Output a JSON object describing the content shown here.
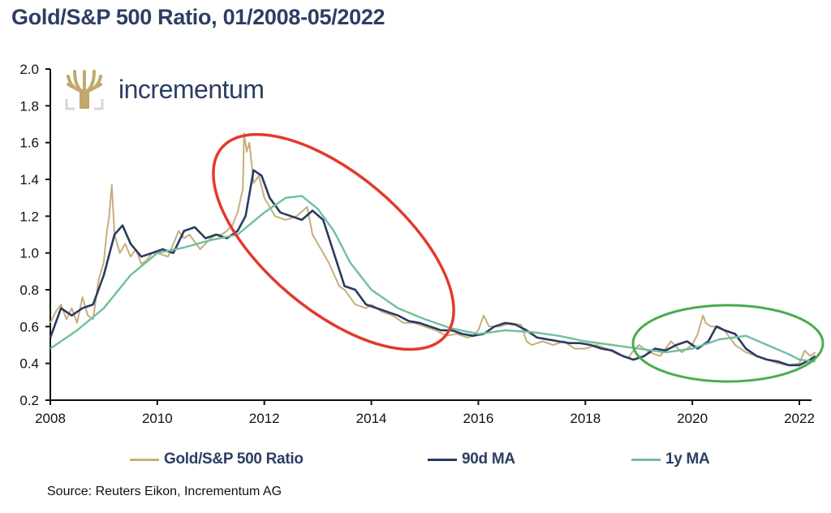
{
  "title": "Gold/S&P 500 Ratio, 01/2008-05/2022",
  "logo": {
    "text": "incrementum",
    "icon": "tree-icon",
    "color": "#c2a86d"
  },
  "source": "Source: Reuters Eikon, Incrementum AG",
  "colors": {
    "ratio": "#c7ae7a",
    "ma90": "#2b3a63",
    "ma1y": "#6fbf9f",
    "red_ellipse": "#e23a2c",
    "green_ellipse": "#4bab4e",
    "text": "#2c3e63"
  },
  "chart_data": {
    "type": "line",
    "title": "Gold/S&P 500 Ratio, 01/2008-05/2022",
    "xlabel": "",
    "ylabel": "",
    "xlim": [
      2008,
      2022.35
    ],
    "ylim": [
      0.2,
      2.0
    ],
    "grid": false,
    "legend_position": "bottom",
    "x_ticks": [
      "2008",
      "2010",
      "2012",
      "2014",
      "2016",
      "2018",
      "2020",
      "2022"
    ],
    "y_ticks": [
      "0.2",
      "0.4",
      "0.6",
      "0.8",
      "1.0",
      "1.2",
      "1.4",
      "1.6",
      "1.8",
      "2.0"
    ],
    "series": [
      {
        "name": "Gold/S&P 500 Ratio",
        "x": [
          2008.0,
          2008.1,
          2008.2,
          2008.3,
          2008.4,
          2008.5,
          2008.6,
          2008.7,
          2008.8,
          2008.9,
          2009.0,
          2009.05,
          2009.1,
          2009.15,
          2009.2,
          2009.3,
          2009.4,
          2009.5,
          2009.6,
          2009.7,
          2009.8,
          2009.9,
          2010.0,
          2010.2,
          2010.4,
          2010.5,
          2010.6,
          2010.8,
          2011.0,
          2011.1,
          2011.2,
          2011.3,
          2011.4,
          2011.5,
          2011.6,
          2011.62,
          2011.67,
          2011.72,
          2011.8,
          2011.9,
          2012.0,
          2012.2,
          2012.4,
          2012.6,
          2012.8,
          2012.9,
          2013.0,
          2013.2,
          2013.4,
          2013.5,
          2013.7,
          2013.9,
          2014.0,
          2014.2,
          2014.4,
          2014.6,
          2014.8,
          2015.0,
          2015.2,
          2015.4,
          2015.6,
          2015.8,
          2015.9,
          2016.0,
          2016.1,
          2016.2,
          2016.4,
          2016.6,
          2016.8,
          2016.9,
          2017.0,
          2017.2,
          2017.4,
          2017.6,
          2017.8,
          2018.0,
          2018.2,
          2018.4,
          2018.6,
          2018.8,
          2018.9,
          2019.0,
          2019.2,
          2019.4,
          2019.6,
          2019.8,
          2020.0,
          2020.1,
          2020.2,
          2020.25,
          2020.35,
          2020.5,
          2020.6,
          2020.8,
          2021.0,
          2021.2,
          2021.4,
          2021.6,
          2021.8,
          2022.0,
          2022.1,
          2022.2,
          2022.3
        ],
        "y": [
          0.62,
          0.68,
          0.72,
          0.64,
          0.7,
          0.62,
          0.76,
          0.66,
          0.64,
          0.85,
          0.95,
          1.1,
          1.2,
          1.37,
          1.1,
          1.0,
          1.05,
          0.98,
          1.02,
          0.94,
          0.96,
          1.0,
          1.0,
          0.98,
          1.12,
          1.08,
          1.1,
          1.02,
          1.08,
          1.1,
          1.1,
          1.12,
          1.15,
          1.22,
          1.35,
          1.65,
          1.55,
          1.6,
          1.38,
          1.42,
          1.3,
          1.2,
          1.18,
          1.2,
          1.25,
          1.1,
          1.05,
          0.95,
          0.82,
          0.8,
          0.72,
          0.7,
          0.72,
          0.68,
          0.66,
          0.62,
          0.62,
          0.6,
          0.58,
          0.55,
          0.56,
          0.54,
          0.55,
          0.58,
          0.66,
          0.6,
          0.6,
          0.62,
          0.61,
          0.52,
          0.5,
          0.52,
          0.5,
          0.52,
          0.48,
          0.48,
          0.5,
          0.48,
          0.45,
          0.43,
          0.47,
          0.5,
          0.46,
          0.44,
          0.52,
          0.46,
          0.5,
          0.56,
          0.66,
          0.62,
          0.6,
          0.6,
          0.58,
          0.5,
          0.46,
          0.44,
          0.42,
          0.4,
          0.39,
          0.4,
          0.47,
          0.44,
          0.46
        ]
      },
      {
        "name": "90d MA",
        "x": [
          2008.0,
          2008.2,
          2008.4,
          2008.6,
          2008.8,
          2009.0,
          2009.2,
          2009.35,
          2009.5,
          2009.7,
          2009.9,
          2010.1,
          2010.3,
          2010.5,
          2010.7,
          2010.9,
          2011.1,
          2011.3,
          2011.5,
          2011.65,
          2011.8,
          2011.95,
          2012.1,
          2012.3,
          2012.5,
          2012.7,
          2012.9,
          2013.1,
          2013.3,
          2013.5,
          2013.7,
          2013.9,
          2014.1,
          2014.3,
          2014.5,
          2014.7,
          2014.9,
          2015.1,
          2015.3,
          2015.5,
          2015.7,
          2015.9,
          2016.1,
          2016.3,
          2016.5,
          2016.7,
          2016.9,
          2017.1,
          2017.3,
          2017.5,
          2017.7,
          2017.9,
          2018.1,
          2018.3,
          2018.5,
          2018.7,
          2018.9,
          2019.1,
          2019.3,
          2019.5,
          2019.7,
          2019.9,
          2020.1,
          2020.3,
          2020.45,
          2020.6,
          2020.8,
          2021.0,
          2021.2,
          2021.4,
          2021.6,
          2021.8,
          2022.0,
          2022.2,
          2022.3
        ],
        "y": [
          0.54,
          0.7,
          0.66,
          0.7,
          0.72,
          0.88,
          1.1,
          1.15,
          1.05,
          0.98,
          1.0,
          1.02,
          1.0,
          1.12,
          1.14,
          1.08,
          1.1,
          1.08,
          1.12,
          1.2,
          1.45,
          1.42,
          1.3,
          1.22,
          1.2,
          1.18,
          1.23,
          1.18,
          1.0,
          0.82,
          0.8,
          0.72,
          0.7,
          0.68,
          0.66,
          0.63,
          0.62,
          0.6,
          0.58,
          0.58,
          0.56,
          0.55,
          0.56,
          0.6,
          0.62,
          0.61,
          0.58,
          0.54,
          0.53,
          0.52,
          0.51,
          0.51,
          0.5,
          0.48,
          0.47,
          0.44,
          0.42,
          0.44,
          0.48,
          0.47,
          0.5,
          0.52,
          0.48,
          0.52,
          0.6,
          0.58,
          0.56,
          0.48,
          0.44,
          0.42,
          0.41,
          0.39,
          0.39,
          0.42,
          0.44
        ]
      },
      {
        "name": "1y MA",
        "x": [
          2008.0,
          2008.5,
          2009.0,
          2009.5,
          2010.0,
          2010.5,
          2011.0,
          2011.5,
          2012.0,
          2012.4,
          2012.7,
          2013.0,
          2013.3,
          2013.6,
          2014.0,
          2014.5,
          2015.0,
          2015.5,
          2016.0,
          2016.5,
          2017.0,
          2017.5,
          2018.0,
          2018.5,
          2019.0,
          2019.5,
          2020.0,
          2020.5,
          2021.0,
          2021.4,
          2021.8,
          2022.0,
          2022.3
        ],
        "y": [
          0.48,
          0.58,
          0.7,
          0.88,
          1.0,
          1.03,
          1.07,
          1.1,
          1.22,
          1.3,
          1.31,
          1.24,
          1.12,
          0.95,
          0.8,
          0.7,
          0.64,
          0.59,
          0.56,
          0.58,
          0.57,
          0.55,
          0.52,
          0.5,
          0.48,
          0.46,
          0.48,
          0.53,
          0.55,
          0.5,
          0.45,
          0.42,
          0.41
        ]
      }
    ],
    "annotations": [
      {
        "type": "ellipse",
        "color": "red",
        "around": "2011-2015 decline"
      },
      {
        "type": "ellipse",
        "color": "green",
        "around": "2019-2022"
      }
    ]
  }
}
